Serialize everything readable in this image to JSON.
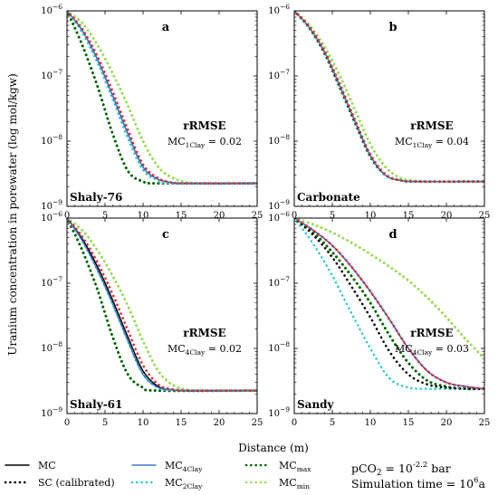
{
  "figure": {
    "xlabel": "Distance (m)",
    "ylabel": "Uranium concentration in porewater (log mol/kgw)",
    "note": {
      "pco2_prefix": "pCO",
      "pco2_sub": "2",
      "pco2_mid": " = 10",
      "pco2_exp": "-2.2",
      "pco2_suffix": " bar",
      "sim_prefix": "Simulation time = 10",
      "sim_exp": "6",
      "sim_suffix": "a"
    },
    "legend": [
      {
        "key": "mc",
        "label": "MC",
        "sub": "",
        "color": "#000000",
        "style": "solid"
      },
      {
        "key": "sc",
        "label": "SC (calibrated)",
        "sub": "",
        "color": "#000000",
        "style": "dotted"
      },
      {
        "key": "mc4",
        "label": "MC",
        "sub": "4Clay",
        "color": "#3a7fd0",
        "style": "solid"
      },
      {
        "key": "mc2",
        "label": "MC",
        "sub": "2Clay",
        "color": "#33cccc",
        "style": "dotted"
      },
      {
        "key": "mcmax",
        "label": "MC",
        "sub": "max",
        "color": "#006400",
        "style": "dotted"
      },
      {
        "key": "mcmin",
        "label": "MC",
        "sub": "min",
        "color": "#99dd55",
        "style": "dotted"
      }
    ],
    "colors": {
      "mc": "#000000",
      "sc": "#000000",
      "mc4": "#3a7fd0",
      "mc2": "#33cccc",
      "mcmax": "#006400",
      "mcmin": "#99dd55",
      "red_dots": "#e0242a"
    }
  },
  "chart_data": [
    {
      "type": "line",
      "panel": "a",
      "site": "Shaly-76",
      "rrmse_title": "rRMSE",
      "rrmse_label": "MC",
      "rrmse_sub": "1Clay",
      "rrmse_value": " = 0.02",
      "xlim": [
        0,
        25
      ],
      "ylim": [
        1e-09,
        1e-06
      ],
      "yscale": "log",
      "xticks": [
        0,
        5,
        10,
        15,
        20,
        25
      ],
      "series": [
        {
          "key": "mc",
          "x": [
            0,
            2,
            4,
            6,
            8,
            10,
            12,
            14,
            16,
            25
          ],
          "y": [
            1e-06,
            5e-07,
            1.8e-07,
            5e-08,
            1.3e-08,
            4e-09,
            2.6e-09,
            2.3e-09,
            2.25e-09,
            2.25e-09
          ]
        },
        {
          "key": "mc4",
          "x": [
            0,
            2,
            4,
            6,
            8,
            10,
            12,
            14,
            16,
            25
          ],
          "y": [
            1e-06,
            5e-07,
            1.8e-07,
            5e-08,
            1.3e-08,
            4e-09,
            2.6e-09,
            2.3e-09,
            2.25e-09,
            2.25e-09
          ]
        },
        {
          "key": "red_dots",
          "x": [
            0,
            2,
            4,
            6,
            8,
            10,
            12,
            14,
            16,
            25
          ],
          "y": [
            1e-06,
            5.3e-07,
            2e-07,
            5.8e-08,
            1.5e-08,
            4.4e-09,
            2.7e-09,
            2.3e-09,
            2.25e-09,
            2.25e-09
          ]
        },
        {
          "key": "mc2",
          "x": [
            0,
            2,
            4,
            6,
            8,
            10,
            12,
            14,
            25
          ],
          "y": [
            1e-06,
            4.6e-07,
            1.6e-07,
            4.4e-08,
            1.1e-08,
            3.6e-09,
            2.5e-09,
            2.25e-09,
            2.25e-09
          ]
        },
        {
          "key": "mcmax",
          "x": [
            0,
            2,
            4,
            6,
            8,
            10,
            12,
            25
          ],
          "y": [
            1e-06,
            3e-07,
            7e-08,
            1.3e-08,
            3.5e-09,
            2.4e-09,
            2.25e-09,
            2.25e-09
          ]
        },
        {
          "key": "mcmin",
          "x": [
            0,
            2,
            4,
            6,
            8,
            10,
            12,
            14,
            16,
            18,
            25
          ],
          "y": [
            1e-06,
            6.5e-07,
            3e-07,
            1.1e-07,
            3.5e-08,
            1e-08,
            4e-09,
            2.7e-09,
            2.3e-09,
            2.25e-09,
            2.25e-09
          ]
        }
      ]
    },
    {
      "type": "line",
      "panel": "b",
      "site": "Carbonate",
      "rrmse_title": "rRMSE",
      "rrmse_label": "MC",
      "rrmse_sub": "1Clay",
      "rrmse_value": " = 0.04",
      "xlim": [
        0,
        25
      ],
      "ylim": [
        1e-09,
        1e-06
      ],
      "yscale": "log",
      "xticks": [
        0,
        5,
        10,
        15,
        20,
        25
      ],
      "series": [
        {
          "key": "mc",
          "x": [
            0,
            2,
            4,
            6,
            8,
            10,
            12,
            14,
            16,
            25
          ],
          "y": [
            1e-06,
            5.5e-07,
            2.3e-07,
            7e-08,
            2e-08,
            6e-09,
            3e-09,
            2.5e-09,
            2.4e-09,
            2.4e-09
          ]
        },
        {
          "key": "mc4",
          "x": [
            0,
            2,
            4,
            6,
            8,
            10,
            12,
            14,
            16,
            25
          ],
          "y": [
            1e-06,
            5.5e-07,
            2.3e-07,
            7e-08,
            2e-08,
            6e-09,
            3e-09,
            2.5e-09,
            2.4e-09,
            2.4e-09
          ]
        },
        {
          "key": "red_dots",
          "x": [
            0,
            2,
            4,
            6,
            8,
            10,
            12,
            14,
            16,
            25
          ],
          "y": [
            1e-06,
            5.7e-07,
            2.4e-07,
            7.5e-08,
            2.1e-08,
            6.3e-09,
            3.1e-09,
            2.5e-09,
            2.4e-09,
            2.4e-09
          ]
        },
        {
          "key": "mc2",
          "x": [
            0,
            2,
            4,
            6,
            8,
            10,
            12,
            14,
            16,
            25
          ],
          "y": [
            1e-06,
            5.6e-07,
            2.4e-07,
            7.3e-08,
            2.1e-08,
            6.2e-09,
            3e-09,
            2.5e-09,
            2.4e-09,
            2.4e-09
          ]
        },
        {
          "key": "mcmax",
          "x": [
            0,
            2,
            4,
            6,
            8,
            10,
            12,
            14,
            16,
            25
          ],
          "y": [
            1e-06,
            5.4e-07,
            2.2e-07,
            6.6e-08,
            1.9e-08,
            5.8e-09,
            3e-09,
            2.5e-09,
            2.4e-09,
            2.4e-09
          ]
        },
        {
          "key": "mcmin",
          "x": [
            0,
            2,
            4,
            6,
            8,
            10,
            12,
            14,
            16,
            18,
            25
          ],
          "y": [
            1e-06,
            6e-07,
            2.8e-07,
            1e-07,
            3e-08,
            9e-09,
            4e-09,
            2.7e-09,
            2.45e-09,
            2.4e-09,
            2.4e-09
          ]
        }
      ]
    },
    {
      "type": "line",
      "panel": "c",
      "site": "Shaly-61",
      "rrmse_title": "rRMSE",
      "rrmse_label": "MC",
      "rrmse_sub": "4Clay",
      "rrmse_value": " = 0.02",
      "xlim": [
        0,
        25
      ],
      "ylim": [
        1e-09,
        1e-06
      ],
      "yscale": "log",
      "xticks": [
        0,
        5,
        10,
        15,
        20,
        25
      ],
      "series": [
        {
          "key": "mc",
          "x": [
            0,
            2,
            4,
            6,
            8,
            10,
            12,
            14,
            16,
            25
          ],
          "y": [
            1e-06,
            4.8e-07,
            1.8e-07,
            5.5e-08,
            1.5e-08,
            4.5e-09,
            2.6e-09,
            2.3e-09,
            2.25e-09,
            2.25e-09
          ]
        },
        {
          "key": "mc4",
          "x": [
            0,
            2,
            4,
            6,
            8,
            10,
            12,
            14,
            16,
            25
          ],
          "y": [
            1e-06,
            4.5e-07,
            1.6e-07,
            4.8e-08,
            1.3e-08,
            4e-09,
            2.5e-09,
            2.3e-09,
            2.25e-09,
            2.25e-09
          ]
        },
        {
          "key": "red_dots",
          "x": [
            0,
            2,
            4,
            6,
            8,
            10,
            12,
            14,
            16,
            25
          ],
          "y": [
            1e-06,
            5.2e-07,
            2.1e-07,
            6.8e-08,
            1.9e-08,
            5.5e-09,
            2.8e-09,
            2.35e-09,
            2.25e-09,
            2.25e-09
          ]
        },
        {
          "key": "mc2",
          "x": [
            0,
            2,
            4,
            6,
            8,
            10,
            12,
            14,
            25
          ],
          "y": [
            1e-06,
            4.5e-07,
            1.6e-07,
            4.8e-08,
            1.3e-08,
            4e-09,
            2.5e-09,
            2.3e-09,
            2.25e-09
          ]
        },
        {
          "key": "mcmax",
          "x": [
            0,
            2,
            4,
            6,
            8,
            10,
            12,
            25
          ],
          "y": [
            1e-06,
            3.2e-07,
            8e-08,
            1.5e-08,
            4e-09,
            2.5e-09,
            2.25e-09,
            2.25e-09
          ]
        },
        {
          "key": "mcmin",
          "x": [
            0,
            2,
            4,
            6,
            8,
            10,
            12,
            14,
            16,
            18,
            25
          ],
          "y": [
            1e-06,
            6.5e-07,
            3.2e-07,
            1.3e-07,
            4.5e-08,
            1.3e-08,
            4.5e-09,
            2.7e-09,
            2.3e-09,
            2.25e-09,
            2.25e-09
          ]
        }
      ]
    },
    {
      "type": "line",
      "panel": "d",
      "site": "Sandy",
      "rrmse_title": "rRMSE",
      "rrmse_label": "MC",
      "rrmse_sub": "4Clay",
      "rrmse_value": " = 0.03",
      "xlim": [
        0,
        25
      ],
      "ylim": [
        1e-09,
        1e-06
      ],
      "yscale": "log",
      "xticks": [
        0,
        5,
        10,
        15,
        20,
        25
      ],
      "series": [
        {
          "key": "mc",
          "x": [
            0,
            2.5,
            5,
            7.5,
            10,
            12.5,
            15,
            17.5,
            20,
            22.5,
            25
          ],
          "y": [
            1e-06,
            6.5e-07,
            3.8e-07,
            1.8e-07,
            7.5e-08,
            2.8e-08,
            1e-08,
            4.5e-09,
            3e-09,
            2.6e-09,
            2.4e-09
          ]
        },
        {
          "key": "mc4",
          "x": [
            0,
            2.5,
            5,
            7.5,
            10,
            12.5,
            15,
            17.5,
            20,
            22.5,
            25
          ],
          "y": [
            1e-06,
            6.5e-07,
            3.8e-07,
            1.8e-07,
            7.5e-08,
            2.8e-08,
            1e-08,
            4.5e-09,
            3e-09,
            2.6e-09,
            2.4e-09
          ]
        },
        {
          "key": "red_dots",
          "x": [
            0,
            2.5,
            5,
            7.5,
            10,
            12.5,
            15,
            17.5,
            20,
            22.5,
            25
          ],
          "y": [
            1e-06,
            6.5e-07,
            3.8e-07,
            1.8e-07,
            7.5e-08,
            2.8e-08,
            1e-08,
            4.5e-09,
            3e-09,
            2.6e-09,
            2.4e-09
          ]
        },
        {
          "key": "sc",
          "x": [
            0,
            2.5,
            5,
            7.5,
            10,
            12.5,
            15,
            17.5,
            20,
            22.5,
            25
          ],
          "y": [
            1e-06,
            5.5e-07,
            2.5e-07,
            9e-08,
            3e-08,
            9e-09,
            4e-09,
            2.8e-09,
            2.5e-09,
            2.4e-09,
            2.4e-09
          ]
        },
        {
          "key": "mc2",
          "x": [
            0,
            2.5,
            5,
            7.5,
            10,
            12.5,
            15,
            17.5,
            20,
            25
          ],
          "y": [
            1e-06,
            4e-07,
            1.3e-07,
            3.5e-08,
            1e-08,
            3.5e-09,
            2.5e-09,
            2.4e-09,
            2.4e-09,
            2.4e-09
          ]
        },
        {
          "key": "mcmax",
          "x": [
            0,
            2.5,
            5,
            7.5,
            10,
            12.5,
            15,
            17.5,
            20,
            22.5,
            25
          ],
          "y": [
            1e-06,
            6e-07,
            3e-07,
            1.3e-07,
            5e-08,
            1.6e-08,
            6e-09,
            3.2e-09,
            2.6e-09,
            2.4e-09,
            2.4e-09
          ]
        },
        {
          "key": "mcmin",
          "x": [
            0,
            2.5,
            5,
            7.5,
            10,
            12.5,
            15,
            17.5,
            20,
            22.5,
            25
          ],
          "y": [
            1e-06,
            8e-07,
            6e-07,
            4.2e-07,
            2.8e-07,
            1.8e-07,
            1.1e-07,
            6e-08,
            3e-08,
            1.4e-08,
            7e-09
          ]
        }
      ]
    }
  ]
}
